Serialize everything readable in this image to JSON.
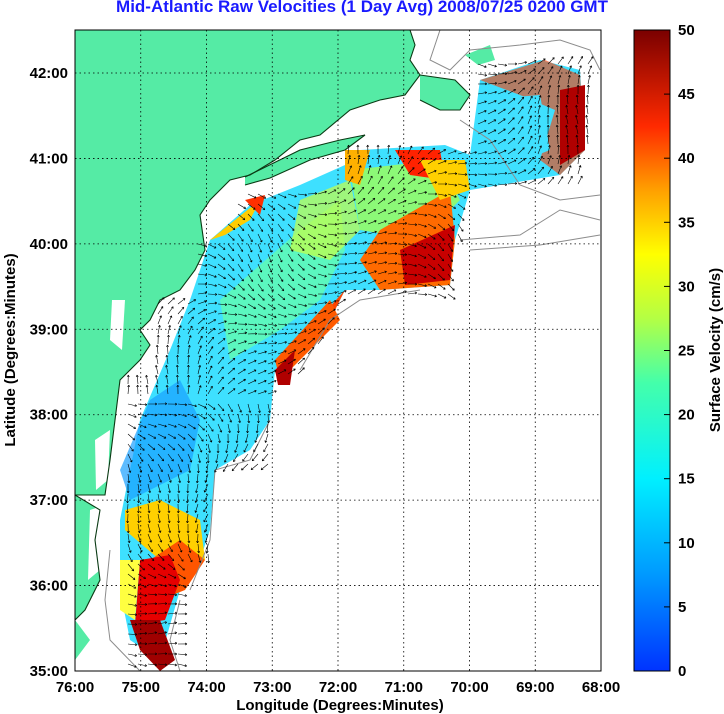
{
  "title": "Mid-Atlantic Raw Velocities (1 Day Avg) 2008/07/25 0200 GMT",
  "axes": {
    "xlabel": "Longitude (Degrees:Minutes)",
    "ylabel": "Latitude (Degrees:Minutes)",
    "x_ticks": [
      "76:00",
      "75:00",
      "74:00",
      "73:00",
      "72:00",
      "71:00",
      "70:00",
      "69:00",
      "68:00"
    ],
    "y_ticks": [
      "42:00",
      "41:00",
      "40:00",
      "39:00",
      "38:00",
      "37:00",
      "36:00",
      "35:00"
    ]
  },
  "colorbar": {
    "label": "Surface Velocity (cm/s)",
    "ticks": [
      "50",
      "45",
      "40",
      "35",
      "30",
      "25",
      "20",
      "15",
      "10",
      "5",
      "0"
    ],
    "range": [
      0,
      50
    ]
  },
  "colors": {
    "land": "#55eba5",
    "title": "#1a1aff",
    "grid": "#000000",
    "bathymetry": "#8c8c8c"
  }
}
